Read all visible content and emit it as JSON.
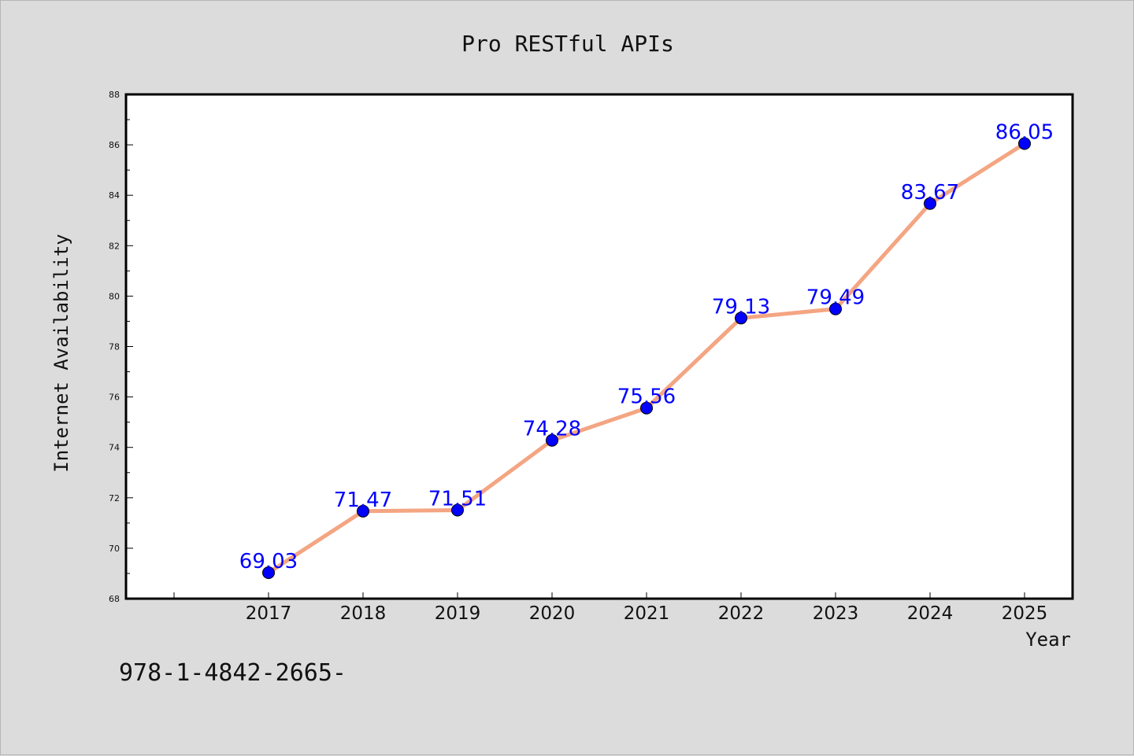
{
  "chart_data": {
    "type": "line",
    "title": "Pro RESTful APIs",
    "xlabel": "Year",
    "ylabel": "Internet Availability",
    "categories": [
      "2017",
      "2018",
      "2019",
      "2020",
      "2021",
      "2022",
      "2023",
      "2024",
      "2025"
    ],
    "series": [
      {
        "values": [
          69.03,
          71.47,
          71.51,
          74.28,
          75.56,
          79.13,
          79.49,
          83.67,
          86.05
        ],
        "labels": [
          "69.03",
          "71.47",
          "71.51",
          "74.28",
          "75.56",
          "79.13",
          "79.49",
          "83.67",
          "86.05"
        ],
        "line_color": "#f4a582",
        "marker_color": "#0000ff"
      }
    ],
    "ylim": [
      68,
      88
    ],
    "yticks": [
      "68",
      "70",
      "72",
      "74",
      "76",
      "78",
      "80",
      "82",
      "84",
      "86",
      "88"
    ],
    "grid": false,
    "legend": "none"
  },
  "footnote": "978-1-4842-2665-",
  "colors": {
    "background": "#dcdcdc",
    "plot_background": "#ffffff",
    "data_label": "#0000ff"
  }
}
